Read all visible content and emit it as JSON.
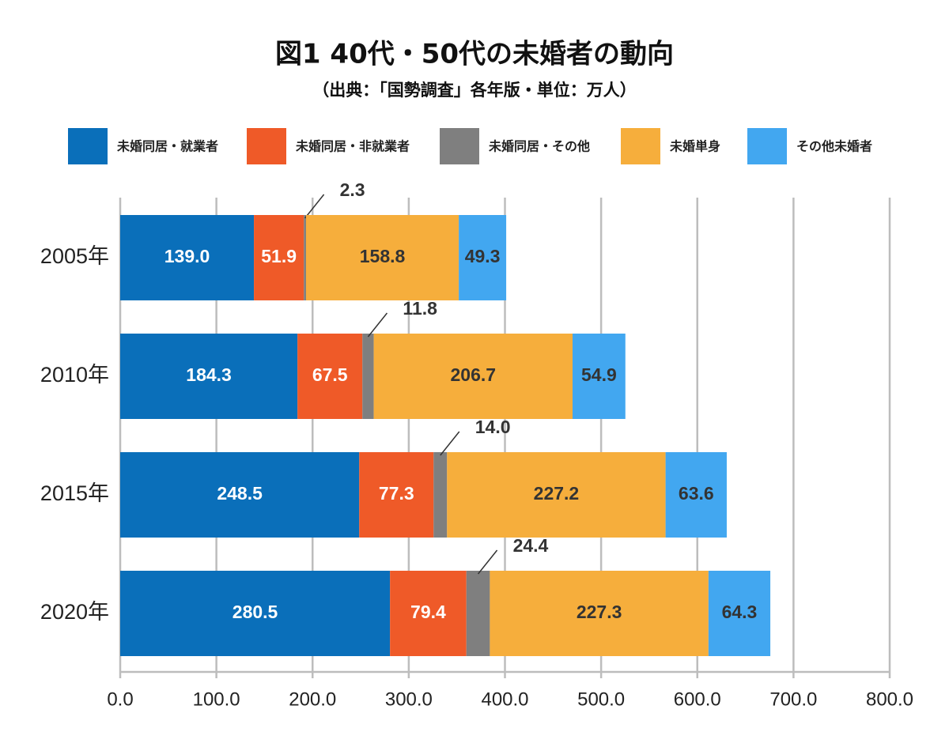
{
  "chart_data": {
    "type": "hbar-stacked",
    "title": "図1 40代・50代の未婚者の動向",
    "subtitle": "（出典：「国勢調査」各年版・単位：万人）",
    "categories": [
      "2005年",
      "2010年",
      "2015年",
      "2020年"
    ],
    "series": [
      {
        "name": "未婚同居・就業者",
        "color": "#0a6fba",
        "label_color": "#ffffff",
        "values": [
          139.0,
          184.3,
          248.5,
          280.5
        ],
        "value_labels": [
          "139.0",
          "184.3",
          "248.5",
          "280.5"
        ]
      },
      {
        "name": "未婚同居・非就業者",
        "color": "#ef5a28",
        "label_color": "#ffffff",
        "values": [
          51.9,
          67.5,
          77.3,
          79.4
        ],
        "value_labels": [
          "51.9",
          "67.5",
          "77.3",
          "79.4"
        ]
      },
      {
        "name": "未婚同居・その他",
        "color": "#7f7f7f",
        "label_color": "#333333",
        "label_position": "outside",
        "values": [
          2.3,
          11.8,
          14.0,
          24.4
        ],
        "value_labels": [
          "2.3",
          "11.8",
          "14.0",
          "24.4"
        ]
      },
      {
        "name": "未婚単身",
        "color": "#f6ae3c",
        "label_color": "#333333",
        "values": [
          158.8,
          206.7,
          227.2,
          227.3
        ],
        "value_labels": [
          "158.8",
          "206.7",
          "227.2",
          "227.3"
        ]
      },
      {
        "name": "その他未婚者",
        "color": "#42a7f0",
        "label_color": "#333333",
        "values": [
          49.3,
          54.9,
          63.6,
          64.3
        ],
        "value_labels": [
          "49.3",
          "54.9",
          "63.6",
          "64.3"
        ]
      }
    ],
    "xlim": [
      0,
      800
    ],
    "xticks": [
      {
        "value": 0,
        "label": "0.0"
      },
      {
        "value": 100,
        "label": "100.0"
      },
      {
        "value": 200,
        "label": "200.0"
      },
      {
        "value": 300,
        "label": "300.0"
      },
      {
        "value": 400,
        "label": "400.0"
      },
      {
        "value": 500,
        "label": "500.0"
      },
      {
        "value": 600,
        "label": "600.0"
      },
      {
        "value": 700,
        "label": "700.0"
      },
      {
        "value": 800,
        "label": "800.0"
      }
    ],
    "grid": true
  }
}
